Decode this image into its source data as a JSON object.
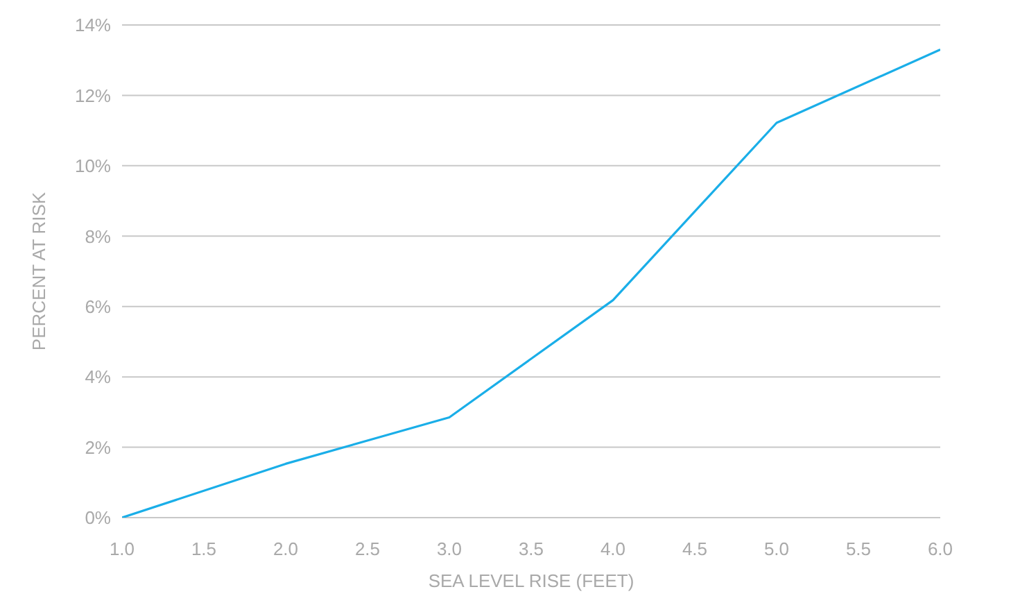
{
  "chart_data": {
    "type": "line",
    "xlabel": "SEA LEVEL RISE (FEET)",
    "ylabel": "PERCENT AT RISK",
    "x": [
      1,
      2,
      3,
      4,
      5,
      6
    ],
    "series": [
      {
        "color": "#1aaee8",
        "values": [
          0,
          1.53,
          2.85,
          6.18,
          11.22,
          13.3
        ]
      }
    ],
    "xlim": [
      1,
      6
    ],
    "xticks": [
      {
        "value": 1,
        "label": "1.0"
      },
      {
        "value": 1.5,
        "label": "1.5"
      },
      {
        "value": 2,
        "label": "2.0"
      },
      {
        "value": 2.5,
        "label": "2.5"
      },
      {
        "value": 3,
        "label": "3.0"
      },
      {
        "value": 3.5,
        "label": "3.5"
      },
      {
        "value": 4,
        "label": "4.0"
      },
      {
        "value": 4.5,
        "label": "4.5"
      },
      {
        "value": 5,
        "label": "5.0"
      },
      {
        "value": 5.5,
        "label": "5.5"
      },
      {
        "value": 6,
        "label": "6.0"
      }
    ],
    "ylim": [
      0,
      14
    ],
    "yticks": [
      {
        "value": 0,
        "label": "0%"
      },
      {
        "value": 2,
        "label": "2%"
      },
      {
        "value": 4,
        "label": "4%"
      },
      {
        "value": 6,
        "label": "6%"
      },
      {
        "value": 8,
        "label": "8%"
      },
      {
        "value": 10,
        "label": "10%"
      },
      {
        "value": 12,
        "label": "12%"
      },
      {
        "value": 14,
        "label": "14%"
      }
    ],
    "grid": "y",
    "legend": false,
    "marker": "none",
    "line_style": "solid"
  }
}
